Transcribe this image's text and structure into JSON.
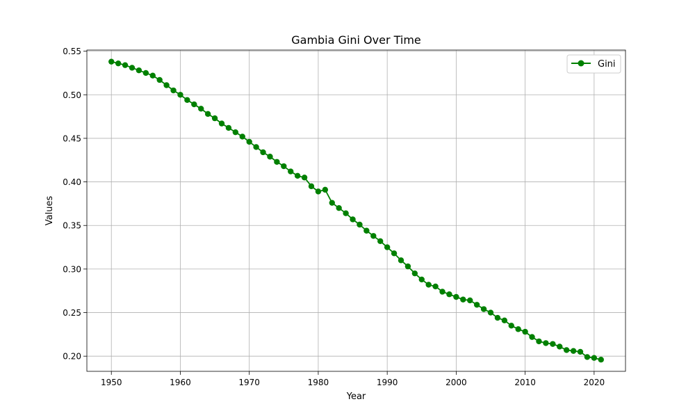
{
  "chart_data": {
    "type": "line",
    "title": "Gambia Gini Over Time",
    "xlabel": "Year",
    "ylabel": "Values",
    "xlim": [
      1946.45,
      2024.55
    ],
    "ylim": [
      0.1826,
      0.5513
    ],
    "xticks": [
      1950,
      1960,
      1970,
      1980,
      1990,
      2000,
      2010,
      2020
    ],
    "xtick_labels": [
      "1950",
      "1960",
      "1970",
      "1980",
      "1990",
      "2000",
      "2010",
      "2020"
    ],
    "yticks": [
      0.2,
      0.25,
      0.3,
      0.35,
      0.4,
      0.45,
      0.5,
      0.55
    ],
    "ytick_labels": [
      "0.20",
      "0.25",
      "0.30",
      "0.35",
      "0.40",
      "0.45",
      "0.50",
      "0.55"
    ],
    "grid": true,
    "legend_position": "top-right",
    "series": [
      {
        "name": "Gini",
        "color": "#008000",
        "marker": "circle",
        "x": [
          1950,
          1951,
          1952,
          1953,
          1954,
          1955,
          1956,
          1957,
          1958,
          1959,
          1960,
          1961,
          1962,
          1963,
          1964,
          1965,
          1966,
          1967,
          1968,
          1969,
          1970,
          1971,
          1972,
          1973,
          1974,
          1975,
          1976,
          1977,
          1978,
          1979,
          1980,
          1981,
          1982,
          1983,
          1984,
          1985,
          1986,
          1987,
          1988,
          1989,
          1990,
          1991,
          1992,
          1993,
          1994,
          1995,
          1996,
          1997,
          1998,
          1999,
          2000,
          2001,
          2002,
          2003,
          2004,
          2005,
          2006,
          2007,
          2008,
          2009,
          2010,
          2011,
          2012,
          2013,
          2014,
          2015,
          2016,
          2017,
          2018,
          2019,
          2020,
          2021
        ],
        "y": [
          0.538,
          0.536,
          0.534,
          0.531,
          0.528,
          0.525,
          0.522,
          0.517,
          0.511,
          0.505,
          0.5,
          0.494,
          0.489,
          0.484,
          0.478,
          0.473,
          0.467,
          0.462,
          0.457,
          0.452,
          0.446,
          0.44,
          0.434,
          0.429,
          0.423,
          0.418,
          0.412,
          0.407,
          0.405,
          0.395,
          0.389,
          0.391,
          0.376,
          0.37,
          0.364,
          0.357,
          0.351,
          0.344,
          0.338,
          0.332,
          0.325,
          0.318,
          0.31,
          0.303,
          0.295,
          0.288,
          0.282,
          0.28,
          0.274,
          0.271,
          0.268,
          0.265,
          0.264,
          0.259,
          0.254,
          0.25,
          0.244,
          0.241,
          0.235,
          0.231,
          0.228,
          0.222,
          0.217,
          0.215,
          0.214,
          0.211,
          0.207,
          0.206,
          0.205,
          0.199,
          0.198,
          0.196
        ]
      }
    ]
  }
}
